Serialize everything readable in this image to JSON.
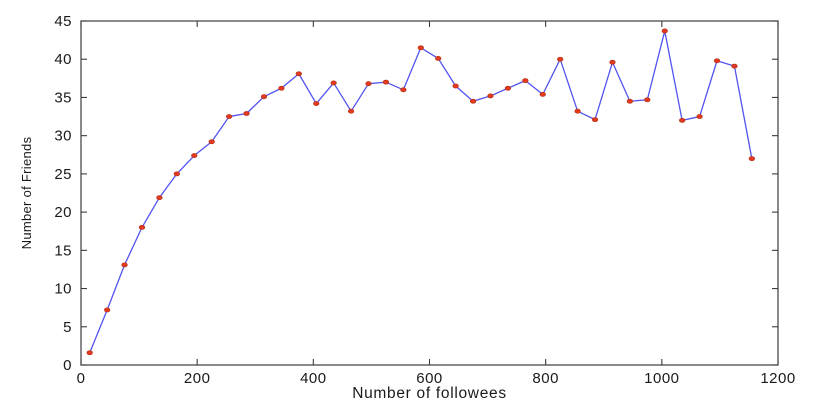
{
  "figure": {
    "background_color": "#ffffff"
  },
  "chart_data": {
    "type": "line",
    "title": "",
    "xlabel": "Number of followees",
    "ylabel": "Number of Friends",
    "x": [
      15,
      45,
      75,
      105,
      135,
      165,
      195,
      225,
      255,
      285,
      315,
      345,
      375,
      405,
      435,
      465,
      495,
      525,
      555,
      585,
      615,
      645,
      675,
      705,
      735,
      765,
      795,
      825,
      855,
      885,
      915,
      945,
      975,
      1005,
      1035,
      1065,
      1095,
      1125,
      1155
    ],
    "y": [
      1.6,
      7.2,
      13.1,
      18.0,
      21.9,
      25.0,
      27.4,
      29.2,
      32.5,
      32.9,
      35.1,
      36.2,
      38.1,
      34.2,
      36.9,
      33.2,
      36.8,
      37.0,
      36.0,
      41.5,
      40.1,
      36.5,
      34.5,
      35.2,
      36.2,
      37.2,
      35.4,
      40.0,
      33.2,
      32.1,
      39.6,
      34.5,
      34.7,
      43.7,
      32.0,
      32.5,
      39.8,
      39.1,
      27.0
    ],
    "xlim": [
      0,
      1200
    ],
    "ylim": [
      0,
      45
    ],
    "xticks": [
      0,
      200,
      400,
      600,
      800,
      1000,
      1200
    ],
    "yticks": [
      0,
      5,
      10,
      15,
      20,
      25,
      30,
      35,
      40,
      45
    ],
    "grid": false,
    "legend_position": "none",
    "line_color": "#5353f0",
    "marker_shape": "ellipse",
    "marker_fill": "#e23a20",
    "marker_edge": "#b52e12",
    "axis_color": "#3c3c3c",
    "tick_label_color": "#1a1a1a"
  }
}
